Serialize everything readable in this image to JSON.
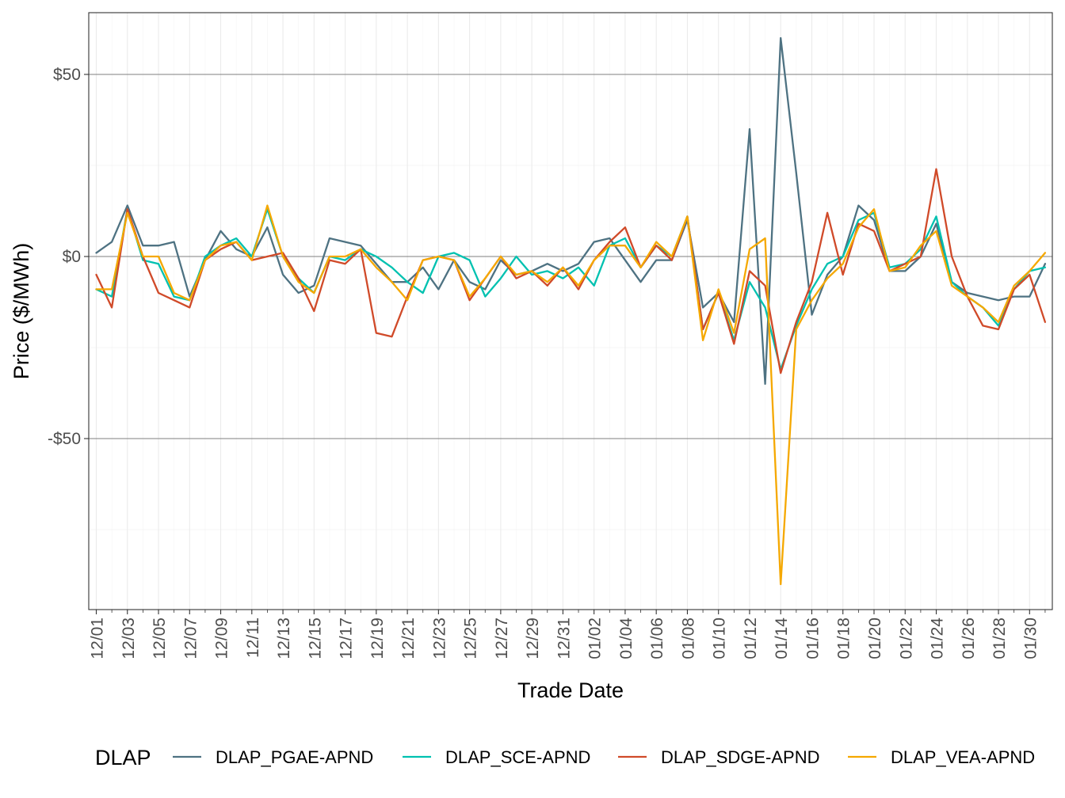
{
  "chart_data": {
    "type": "line",
    "xlabel": "Trade Date",
    "ylabel": "Price ($/MWh)",
    "ylim": [
      -96,
      66
    ],
    "y_ticks": [
      {
        "value": 50,
        "label": "$50"
      },
      {
        "value": 0,
        "label": "$0"
      },
      {
        "value": -50,
        "label": "-$50"
      }
    ],
    "x_tick_labels": [
      "12/01",
      "12/03",
      "12/05",
      "12/07",
      "12/09",
      "12/11",
      "12/13",
      "12/15",
      "12/17",
      "12/19",
      "12/21",
      "12/23",
      "12/25",
      "12/27",
      "12/29",
      "12/31",
      "01/02",
      "01/04",
      "01/06",
      "01/08",
      "01/10",
      "01/12",
      "01/14",
      "01/16",
      "01/18",
      "01/20",
      "01/22",
      "01/24",
      "01/26",
      "01/28",
      "01/30"
    ],
    "x": [
      "12/01",
      "12/02",
      "12/03",
      "12/04",
      "12/05",
      "12/06",
      "12/07",
      "12/08",
      "12/09",
      "12/10",
      "12/11",
      "12/12",
      "12/13",
      "12/14",
      "12/15",
      "12/16",
      "12/17",
      "12/18",
      "12/19",
      "12/20",
      "12/21",
      "12/22",
      "12/23",
      "12/24",
      "12/25",
      "12/26",
      "12/27",
      "12/28",
      "12/29",
      "12/30",
      "12/31",
      "01/01",
      "01/02",
      "01/03",
      "01/04",
      "01/05",
      "01/06",
      "01/07",
      "01/08",
      "01/09",
      "01/10",
      "01/11",
      "01/12",
      "01/13",
      "01/14",
      "01/15",
      "01/16",
      "01/17",
      "01/18",
      "01/19",
      "01/20",
      "01/21",
      "01/22",
      "01/23",
      "01/24",
      "01/25",
      "01/26",
      "01/27",
      "01/28",
      "01/29",
      "01/30",
      "01/31"
    ],
    "grid": true,
    "legend_title": "DLAP",
    "legend_position": "bottom",
    "series": [
      {
        "name": "DLAP_PGAE-APND",
        "color": "#4e7282",
        "values": [
          1,
          4,
          14,
          3,
          3,
          4,
          -11,
          -1,
          7,
          2,
          0,
          8,
          -5,
          -10,
          -8,
          5,
          4,
          3,
          -2,
          -7,
          -7,
          -3,
          -9,
          -1,
          -7,
          -9,
          -1,
          -5,
          -4,
          -2,
          -4,
          -2,
          4,
          5,
          -1,
          -7,
          -1,
          -1,
          10,
          -14,
          -10,
          -18,
          35,
          -35,
          60,
          23,
          -16,
          -5,
          0,
          14,
          10,
          -4,
          -4,
          0,
          9,
          -7,
          -10,
          -11,
          -12,
          -11,
          -11,
          -2
        ]
      },
      {
        "name": "DLAP_SCE-APND",
        "color": "#00c1b0",
        "values": [
          -9,
          -11,
          13,
          -1,
          -2,
          -11,
          -12,
          0,
          3,
          5,
          0,
          13,
          0,
          -6,
          -10,
          0,
          -1,
          2,
          0,
          -3,
          -7,
          -10,
          0,
          1,
          -1,
          -11,
          -6,
          0,
          -5,
          -4,
          -6,
          -3,
          -8,
          3,
          5,
          -3,
          3,
          0,
          11,
          -20,
          -10,
          -23,
          -7,
          -14,
          -31,
          -19,
          -9,
          -2,
          0,
          10,
          12,
          -3,
          -2,
          2,
          11,
          -7,
          -11,
          -14,
          -19,
          -9,
          -4,
          -3
        ]
      },
      {
        "name": "DLAP_SDGE-APND",
        "color": "#d04a29",
        "values": [
          -5,
          -14,
          13,
          0,
          -10,
          -12,
          -14,
          -1,
          2,
          4,
          -1,
          0,
          1,
          -6,
          -15,
          -1,
          -2,
          2,
          -21,
          -22,
          -11,
          -1,
          0,
          -1,
          -12,
          -6,
          0,
          -6,
          -4,
          -8,
          -3,
          -9,
          -1,
          4,
          8,
          -3,
          3,
          -1,
          11,
          -20,
          -10,
          -24,
          -4,
          -8,
          -32,
          -18,
          -7,
          12,
          -5,
          9,
          7,
          -4,
          -2,
          0,
          24,
          0,
          -11,
          -19,
          -20,
          -9,
          -5,
          -18
        ]
      },
      {
        "name": "DLAP_VEA-APND",
        "color": "#f5a800",
        "values": [
          -9,
          -9,
          12,
          0,
          0,
          -10,
          -12,
          -1,
          3,
          4,
          -1,
          14,
          0,
          -7,
          -10,
          0,
          0,
          2,
          -3,
          -7,
          -12,
          -1,
          0,
          -1,
          -11,
          -6,
          0,
          -5,
          -4,
          -7,
          -3,
          -8,
          -1,
          3,
          3,
          -3,
          4,
          0,
          11,
          -23,
          -9,
          -21,
          2,
          5,
          -90,
          -20,
          -12,
          -6,
          -2,
          8,
          13,
          -4,
          -3,
          3,
          7,
          -8,
          -11,
          -14,
          -18,
          -8,
          -4,
          1
        ]
      }
    ]
  }
}
